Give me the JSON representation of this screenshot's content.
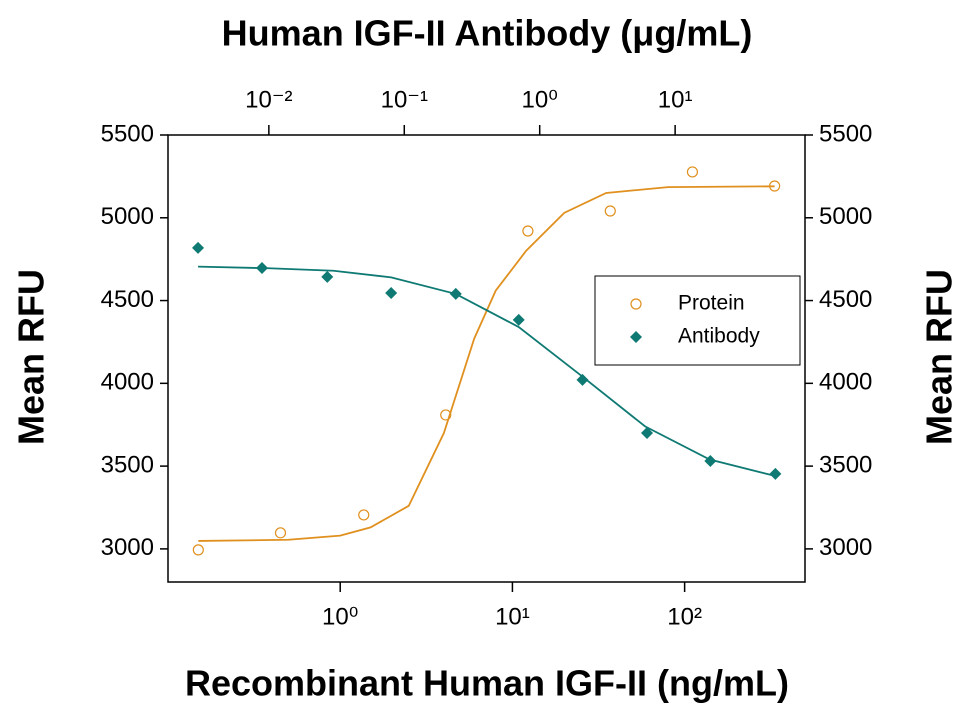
{
  "chart_data": {
    "type": "scatter",
    "title": "Human IGF-II Antibody (μg/mL)",
    "xlabel": "Recombinant Human IGF-II (ng/mL)",
    "ylabel": "Mean RFU",
    "y2label": "Mean RFU",
    "xscale": "log",
    "xlim": [
      0.1,
      500
    ],
    "xticks": [
      {
        "value": 1,
        "label": "10⁰"
      },
      {
        "value": 10,
        "label": "10¹"
      },
      {
        "value": 100,
        "label": "10²"
      }
    ],
    "x2lim": [
      0.0018,
      91
    ],
    "x2ticks": [
      {
        "value": 0.01,
        "label": "10⁻²"
      },
      {
        "value": 0.1,
        "label": "10⁻¹"
      },
      {
        "value": 1,
        "label": "10⁰"
      },
      {
        "value": 10,
        "label": "10¹"
      }
    ],
    "ylim": [
      2800,
      5500
    ],
    "yticks": [
      3000,
      3500,
      4000,
      4500,
      5000,
      5500
    ],
    "y2lim": [
      2800,
      5500
    ],
    "y2ticks": [
      3000,
      3500,
      4000,
      4500,
      5000,
      5500
    ],
    "legend": "right",
    "series": [
      {
        "name": "Protein",
        "color": "#e0901e",
        "marker": "open-circle",
        "xaxis": "x",
        "x": [
          0.15,
          0.45,
          1.37,
          4.1,
          12.3,
          37,
          111,
          333
        ],
        "values": [
          2994,
          3097,
          3205,
          3809,
          4920,
          5041,
          5277,
          5192
        ],
        "fit_x": [
          0.15,
          0.5,
          1,
          1.5,
          2.5,
          4,
          6,
          8,
          12,
          20,
          35,
          80,
          333
        ],
        "fit_values": [
          3048,
          3055,
          3080,
          3130,
          3260,
          3700,
          4270,
          4560,
          4800,
          5030,
          5150,
          5185,
          5190
        ]
      },
      {
        "name": "Antibody",
        "color": "#0f7a73",
        "marker": "diamond",
        "xaxis": "x2",
        "x": [
          0.003,
          0.0089,
          0.027,
          0.08,
          0.24,
          0.7,
          2.07,
          6.2,
          18.2,
          55
        ],
        "values": [
          4818,
          4697,
          4643,
          4546,
          4540,
          4383,
          4021,
          3700,
          3531,
          3453
        ],
        "fit_x": [
          0.003,
          0.01,
          0.03,
          0.08,
          0.24,
          0.7,
          2,
          6,
          18,
          55
        ],
        "fit_values": [
          4705,
          4695,
          4680,
          4640,
          4540,
          4340,
          4050,
          3740,
          3540,
          3440
        ]
      }
    ]
  }
}
